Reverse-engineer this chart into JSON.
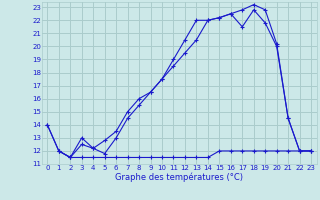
{
  "title": "Graphe des températures (°C)",
  "background_color": "#cce8e8",
  "grid_color": "#aacccc",
  "line_color": "#1a1acc",
  "xlim": [
    -0.5,
    23.5
  ],
  "ylim": [
    11,
    23.4
  ],
  "xticks": [
    0,
    1,
    2,
    3,
    4,
    5,
    6,
    7,
    8,
    9,
    10,
    11,
    12,
    13,
    14,
    15,
    16,
    17,
    18,
    19,
    20,
    21,
    22,
    23
  ],
  "yticks": [
    11,
    12,
    13,
    14,
    15,
    16,
    17,
    18,
    19,
    20,
    21,
    22,
    23
  ],
  "line1_x": [
    0,
    1,
    2,
    3,
    4,
    5,
    6,
    7,
    8,
    9,
    10,
    11,
    12,
    13,
    14,
    15,
    16,
    17,
    18,
    19,
    20,
    21,
    22,
    23
  ],
  "line1_y": [
    14,
    12,
    11.5,
    11.5,
    11.5,
    11.5,
    11.5,
    11.5,
    11.5,
    11.5,
    11.5,
    11.5,
    11.5,
    11.5,
    11.5,
    12,
    12,
    12,
    12,
    12,
    12,
    12,
    12,
    12
  ],
  "line2_x": [
    0,
    1,
    2,
    3,
    4,
    5,
    6,
    7,
    8,
    9,
    10,
    11,
    12,
    13,
    14,
    15,
    16,
    17,
    18,
    19,
    20,
    21,
    22,
    23
  ],
  "line2_y": [
    14,
    12,
    11.5,
    12.5,
    12.2,
    11.8,
    13.0,
    14.5,
    15.5,
    16.5,
    17.5,
    18.5,
    19.5,
    20.5,
    22.0,
    22.2,
    22.5,
    22.8,
    23.2,
    22.8,
    20.2,
    14.5,
    12,
    12
  ],
  "line3_x": [
    1,
    2,
    3,
    4,
    5,
    6,
    7,
    8,
    9,
    10,
    11,
    12,
    13,
    14,
    15,
    16,
    17,
    18,
    19,
    20,
    21,
    22,
    23
  ],
  "line3_y": [
    12,
    11.5,
    13.0,
    12.2,
    12.8,
    13.5,
    15.0,
    16.0,
    16.5,
    17.5,
    19.0,
    20.5,
    22.0,
    22.0,
    22.2,
    22.5,
    21.5,
    22.8,
    21.8,
    20.0,
    14.5,
    12,
    12
  ]
}
